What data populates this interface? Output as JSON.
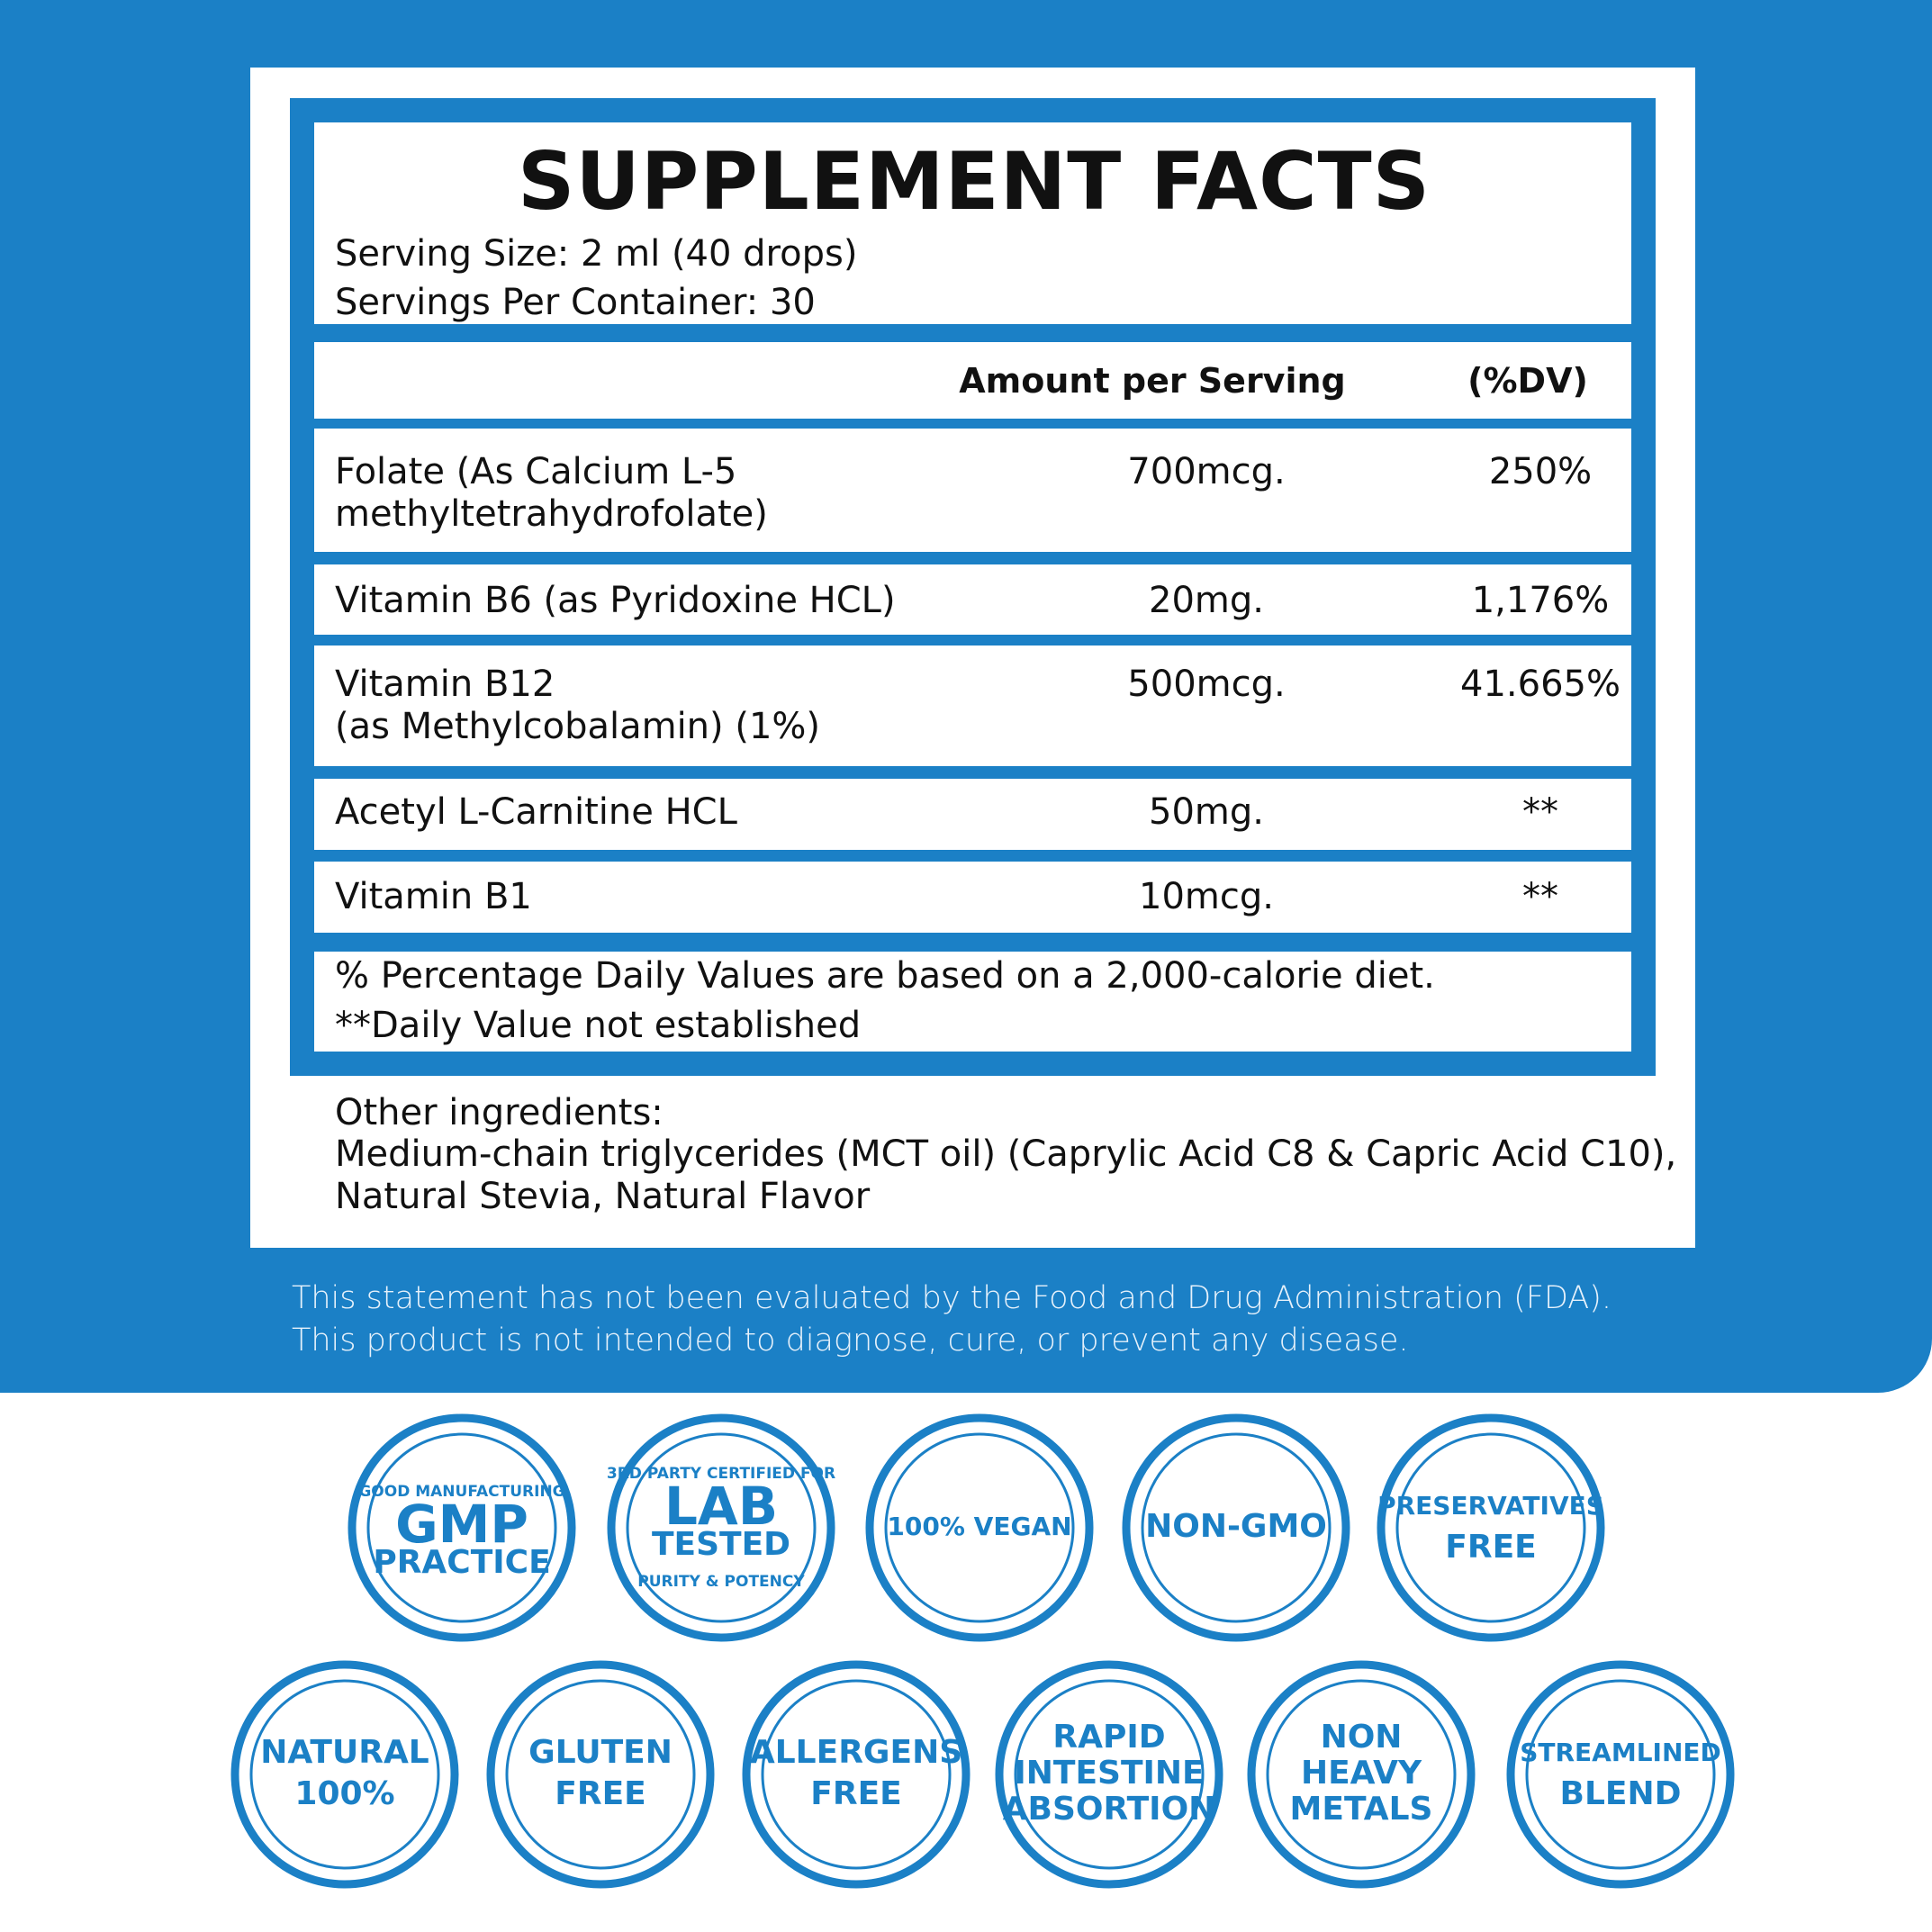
{
  "label": {
    "title": "SUPPLEMENT FACTS",
    "serving_size": "Serving Size: 2 ml (40 drops)",
    "servings_per_container": "Servings Per Container: 30",
    "header": {
      "amount": "Amount per Serving",
      "dv": "(%DV)"
    },
    "rows": [
      {
        "name": [
          "Folate (As Calcium L-5",
          "methyltetrahydrofolate)"
        ],
        "amount": "700mcg.",
        "dv": "250%"
      },
      {
        "name": [
          "Vitamin B6 (as Pyridoxine HCL)"
        ],
        "amount": "20mg.",
        "dv": "1,176%"
      },
      {
        "name": [
          "Vitamin B12",
          "(as Methylcobalamin) (1%)"
        ],
        "amount": "500mcg.",
        "dv": "41.665%"
      },
      {
        "name": [
          "Acetyl L-Carnitine HCL"
        ],
        "amount": "50mg.",
        "dv": "**"
      },
      {
        "name": [
          "Vitamin B1"
        ],
        "amount": "10mcg.",
        "dv": "**"
      }
    ],
    "footnotes": [
      "% Percentage Daily Values are based on a 2,000-calorie diet.",
      "**Daily Value not established"
    ],
    "other_ingredients": {
      "heading": "Other ingredients:",
      "lines": [
        "Medium-chain triglycerides (MCT oil) (Caprylic Acid C8 & Capric Acid C10),",
        "Natural Stevia, Natural Flavor"
      ]
    }
  },
  "disclaimer": [
    "This statement has not been evaluated by the Food and Drug Administration (FDA).",
    "This product is not intended to diagnose, cure, or prevent any disease."
  ],
  "badges": [
    {
      "lines": [
        "GOOD MANUFACTURING",
        "GMP",
        "PRACTICE"
      ]
    },
    {
      "lines": [
        "3RD PARTY CERTIFIED FOR",
        "LAB",
        "TESTED",
        "PURITY & POTENCY"
      ]
    },
    {
      "lines": [
        "100% VEGAN"
      ]
    },
    {
      "lines": [
        "NON-GMO"
      ]
    },
    {
      "lines": [
        "PRESERVATIVES",
        "FREE"
      ]
    },
    {
      "lines": [
        "NATURAL",
        "100%"
      ]
    },
    {
      "lines": [
        "GLUTEN",
        "FREE"
      ]
    },
    {
      "lines": [
        "ALLERGENS",
        "FREE"
      ]
    },
    {
      "lines": [
        "RAPID",
        "INTESTINE",
        "ABSORTION"
      ]
    },
    {
      "lines": [
        "NON",
        "HEAVY",
        "METALS"
      ]
    },
    {
      "lines": [
        "STREAMLINED",
        "BLEND"
      ]
    }
  ]
}
